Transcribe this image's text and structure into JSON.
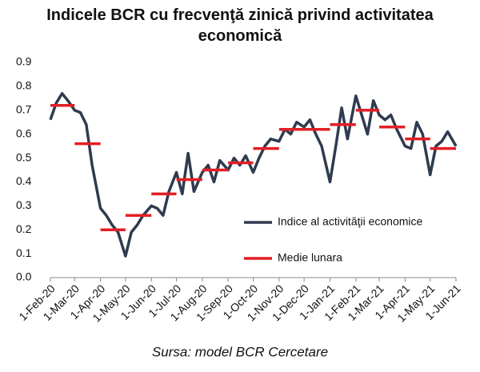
{
  "chart_data": {
    "type": "line",
    "title": "Indicele BCR cu frecvenţă zinică privind activitatea economică",
    "source": "Sursa: model BCR Cercetare",
    "legend": "right",
    "xlim": [
      "1-Feb-20",
      "1-Jun-21"
    ],
    "xticks": [
      "1-Feb-20",
      "1-Mar-20",
      "1-Apr-20",
      "1-May-20",
      "1-Jun-20",
      "1-Jul-20",
      "1-Aug-20",
      "1-Sep-20",
      "1-Oct-20",
      "1-Nov-20",
      "1-Dec-20",
      "1-Jan-21",
      "1-Feb-21",
      "1-Mar-21",
      "1-Apr-21",
      "1-May-21",
      "1-Jun-21"
    ],
    "ylim": [
      0,
      0.9
    ],
    "yticks": [
      {
        "value": 0,
        "label": "0.0"
      },
      0.1,
      0.2,
      0.3,
      0.4,
      0.5,
      0.6,
      0.7,
      0.8,
      0.9
    ],
    "series": [
      {
        "name": "Indice al activităţii economice",
        "color": "#2f3b4f",
        "style": "line",
        "x": [
          "1-Feb-20",
          "8-Feb-20",
          "15-Feb-20",
          "22-Feb-20",
          "1-Mar-20",
          "8-Mar-20",
          "15-Mar-20",
          "22-Mar-20",
          "1-Apr-20",
          "8-Apr-20",
          "15-Apr-20",
          "22-Apr-20",
          "1-May-20",
          "8-May-20",
          "15-May-20",
          "22-May-20",
          "1-Jun-20",
          "8-Jun-20",
          "15-Jun-20",
          "22-Jun-20",
          "1-Jul-20",
          "8-Jul-20",
          "15-Jul-20",
          "22-Jul-20",
          "1-Aug-20",
          "8-Aug-20",
          "15-Aug-20",
          "22-Aug-20",
          "1-Sep-20",
          "8-Sep-20",
          "15-Sep-20",
          "22-Sep-20",
          "1-Oct-20",
          "8-Oct-20",
          "15-Oct-20",
          "22-Oct-20",
          "1-Nov-20",
          "8-Nov-20",
          "15-Nov-20",
          "22-Nov-20",
          "1-Dec-20",
          "8-Dec-20",
          "15-Dec-20",
          "22-Dec-20",
          "1-Jan-21",
          "8-Jan-21",
          "15-Jan-21",
          "22-Jan-21",
          "1-Feb-21",
          "8-Feb-21",
          "15-Feb-21",
          "22-Feb-21",
          "1-Mar-21",
          "8-Mar-21",
          "15-Mar-21",
          "22-Mar-21",
          "1-Apr-21",
          "8-Apr-21",
          "15-Apr-21",
          "22-Apr-21",
          "1-May-21",
          "8-May-21",
          "15-May-21",
          "22-May-21",
          "1-Jun-21"
        ],
        "values": [
          0.66,
          0.73,
          0.77,
          0.74,
          0.7,
          0.69,
          0.64,
          0.47,
          0.29,
          0.26,
          0.22,
          0.19,
          0.09,
          0.19,
          0.22,
          0.26,
          0.3,
          0.29,
          0.26,
          0.36,
          0.44,
          0.35,
          0.52,
          0.36,
          0.44,
          0.47,
          0.4,
          0.49,
          0.45,
          0.5,
          0.47,
          0.51,
          0.44,
          0.5,
          0.55,
          0.58,
          0.57,
          0.62,
          0.6,
          0.65,
          0.63,
          0.66,
          0.6,
          0.55,
          0.4,
          0.55,
          0.71,
          0.58,
          0.76,
          0.68,
          0.6,
          0.74,
          0.68,
          0.66,
          0.68,
          0.62,
          0.55,
          0.54,
          0.65,
          0.6,
          0.43,
          0.55,
          0.57,
          0.61,
          0.55
        ]
      },
      {
        "name": "Medie lunara",
        "color": "#e31e24",
        "style": "monthly",
        "x": [
          "1-Feb-20",
          "1-Mar-20",
          "1-Apr-20",
          "1-May-20",
          "1-Jun-20",
          "1-Jul-20",
          "1-Aug-20",
          "1-Sep-20",
          "1-Oct-20",
          "1-Nov-20",
          "1-Dec-20",
          "1-Jan-21",
          "1-Feb-21",
          "1-Mar-21",
          "1-Apr-21",
          "1-May-21"
        ],
        "values": [
          0.72,
          0.56,
          0.2,
          0.26,
          0.35,
          0.41,
          0.45,
          0.48,
          0.54,
          0.62,
          0.62,
          0.64,
          0.7,
          0.63,
          0.58,
          0.54
        ]
      }
    ]
  }
}
